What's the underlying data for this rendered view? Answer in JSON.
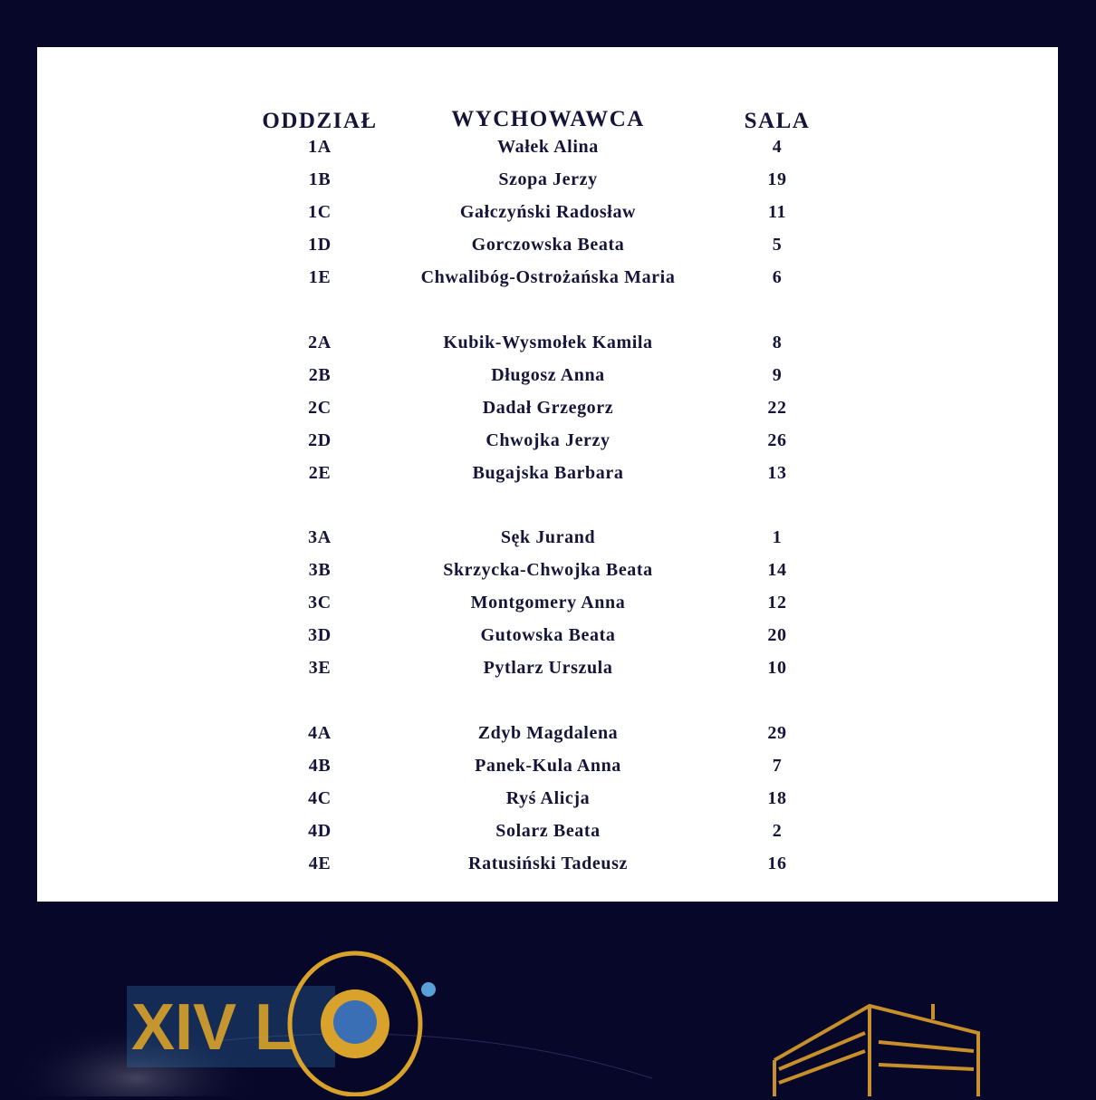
{
  "headers": {
    "class": "ODDZIAŁ",
    "teacher": "WYCHOWAWCA",
    "room": "SALA"
  },
  "groups": [
    [
      [
        "1A",
        "Wałek Alina",
        "4"
      ],
      [
        "1B",
        "Szopa Jerzy",
        "19"
      ],
      [
        "1C",
        "Gałczyński Radosław",
        "11"
      ],
      [
        "1D",
        "Gorczowska Beata",
        "5"
      ],
      [
        "1E",
        "Chwalibóg-Ostrożańska Maria",
        "6"
      ]
    ],
    [
      [
        "2A",
        "Kubik-Wysmołek Kamila",
        "8"
      ],
      [
        "2B",
        "Długosz Anna",
        "9"
      ],
      [
        "2C",
        "Dadał Grzegorz",
        "22"
      ],
      [
        "2D",
        "Chwojka Jerzy",
        "26"
      ],
      [
        "2E",
        "Bugajska Barbara",
        "13"
      ]
    ],
    [
      [
        "3A",
        "Sęk Jurand",
        "1"
      ],
      [
        "3B",
        "Skrzycka-Chwojka Beata",
        "14"
      ],
      [
        "3C",
        "Montgomery Anna",
        "12"
      ],
      [
        "3D",
        "Gutowska Beata",
        "20"
      ],
      [
        "3E",
        "Pytlarz Urszula",
        "10"
      ]
    ],
    [
      [
        "4A",
        "Zdyb Magdalena",
        "29"
      ],
      [
        "4B",
        "Panek-Kula Anna",
        "7"
      ],
      [
        "4C",
        "Ryś Alicja",
        "18"
      ],
      [
        "4D",
        "Solarz Beata",
        "2"
      ],
      [
        "4E",
        "Ratusiński Tadeusz",
        "16"
      ]
    ]
  ],
  "logo": {
    "text": "XIV LO"
  },
  "colors": {
    "background": "#07072a",
    "text": "#15153a",
    "gold": "#d9a22a",
    "blue": "#3a8fd0"
  }
}
